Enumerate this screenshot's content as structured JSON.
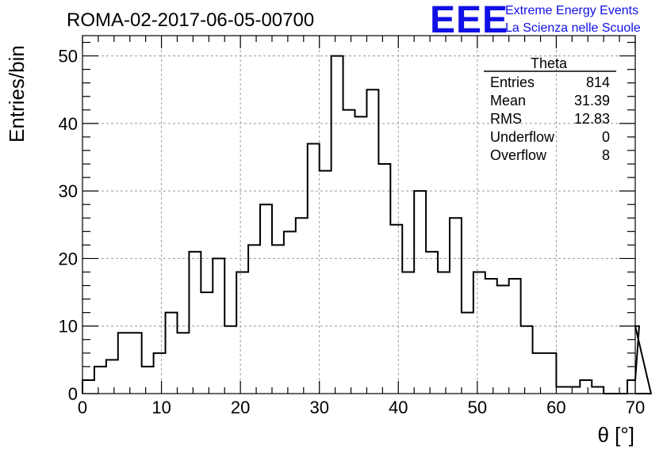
{
  "header": {
    "run_title": "ROMA-02-2017-06-05-00700",
    "logo_text": "EEE",
    "logo_line1": "Extreme Energy Events",
    "logo_line2": "La Scienza nelle Scuole",
    "logo_color": "#1010e6"
  },
  "stats_box": {
    "title": "Theta",
    "rows": [
      {
        "label": "Entries",
        "value": "814"
      },
      {
        "label": "Mean",
        "value": "31.39"
      },
      {
        "label": "RMS",
        "value": "12.83"
      },
      {
        "label": "Underflow",
        "value": "0"
      },
      {
        "label": "Overflow",
        "value": "8"
      }
    ]
  },
  "chart_data": {
    "type": "bar",
    "histogram_step": true,
    "title": "ROMA-02-2017-06-05-00700",
    "xlabel": "θ [°]",
    "ylabel": "Entries/bin",
    "xlim": [
      0,
      70
    ],
    "ylim": [
      0,
      53
    ],
    "bin_width": 1.5,
    "x_ticks": [
      0,
      10,
      20,
      30,
      40,
      50,
      60,
      70
    ],
    "y_ticks": [
      0,
      10,
      20,
      30,
      40,
      50
    ],
    "grid": true,
    "values": [
      2,
      4,
      5,
      9,
      9,
      4,
      6,
      12,
      9,
      21,
      15,
      20,
      10,
      18,
      22,
      28,
      22,
      24,
      26,
      37,
      33,
      50,
      42,
      41,
      45,
      34,
      25,
      18,
      30,
      21,
      18,
      26,
      12,
      18,
      17,
      16,
      17,
      10,
      6,
      6,
      1,
      1,
      2,
      1,
      0,
      0,
      2,
      10,
      0
    ],
    "line_color": "#000000",
    "grid_color": "#999999"
  }
}
